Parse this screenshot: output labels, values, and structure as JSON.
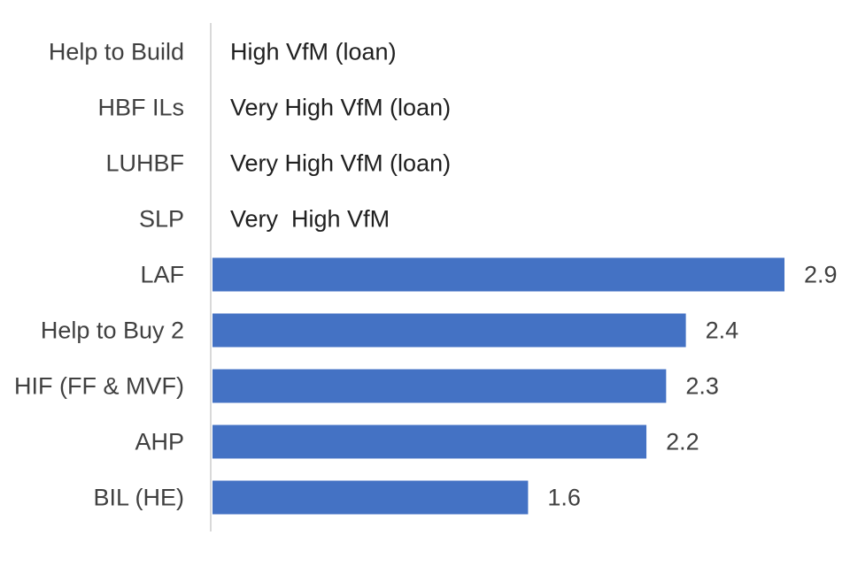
{
  "chart_data": {
    "type": "bar",
    "orientation": "horizontal",
    "title": "",
    "xlabel": "",
    "ylabel": "",
    "categories": [
      "Help to Build",
      "HBF ILs",
      "LUHBF",
      "SLP",
      "LAF",
      "Help to Buy 2",
      "HIF (FF & MVF)",
      "AHP",
      "BIL (HE)"
    ],
    "values": [
      null,
      null,
      null,
      null,
      2.9,
      2.4,
      2.3,
      2.2,
      1.6
    ],
    "data_labels": [
      "",
      "",
      "",
      "",
      "2.9",
      "2.4",
      "2.3",
      "2.2",
      "1.6"
    ],
    "text_notes": [
      "High VfM (loan)",
      "Very High VfM (loan)",
      "Very High VfM (loan)",
      "Very  High VfM",
      "",
      "",
      "",
      "",
      ""
    ],
    "xlim": [
      0,
      3
    ],
    "grid": false,
    "legend": "none",
    "bar_color": "#4472c4",
    "axis_color": "#d9d9d9"
  }
}
